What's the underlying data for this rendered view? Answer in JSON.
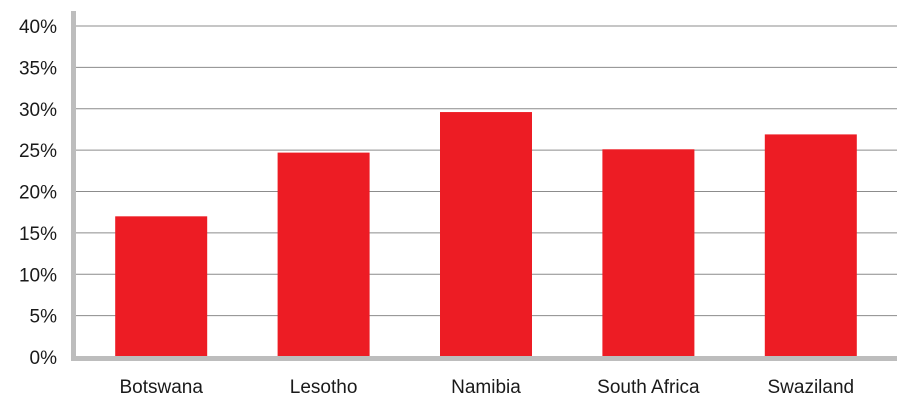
{
  "chart_data": {
    "type": "bar",
    "title": "",
    "xlabel": "",
    "ylabel": "",
    "categories": [
      "Botswana",
      "Lesotho",
      "Namibia",
      "South Africa",
      "Swaziland"
    ],
    "values": [
      17.0,
      24.7,
      29.6,
      25.1,
      26.9
    ],
    "ylim": [
      0,
      40
    ],
    "yticks": [
      0,
      5,
      10,
      15,
      20,
      25,
      30,
      35,
      40
    ],
    "ytick_labels": [
      "0%",
      "5%",
      "10%",
      "15%",
      "20%",
      "25%",
      "30%",
      "35%",
      "40%"
    ],
    "grid": true,
    "legend": "none",
    "colors": {
      "bar": "#ed1c24",
      "grid": "#8c8c8c",
      "axis": "#bdbdbd",
      "text": "#1a1a1a"
    }
  }
}
